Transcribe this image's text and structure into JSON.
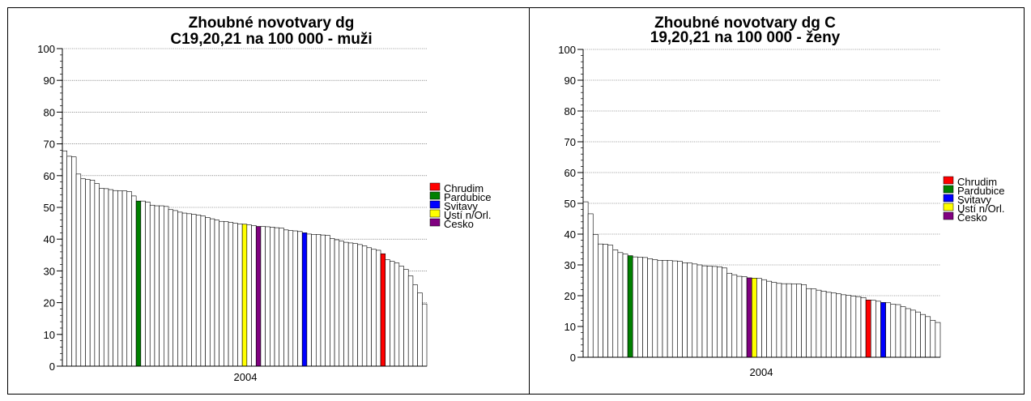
{
  "chart_data": [
    {
      "type": "bar",
      "title_lines": [
        "Zhoubné novotvary dg",
        "C19,20,21 na 100 000 - muži"
      ],
      "xlabel": "2004",
      "ylabel": "",
      "ylim": [
        0,
        100
      ],
      "yticks": [
        "0",
        "10",
        "20",
        "30",
        "40",
        "50",
        "60",
        "70",
        "80",
        "90",
        "100"
      ],
      "grid": "horizontal dotted at major ticks",
      "legend_placement": "right",
      "legend": [
        {
          "name": "Chrudim",
          "color": "#ff0000"
        },
        {
          "name": "Pardubice",
          "color": "#008000"
        },
        {
          "name": "Svitavy",
          "color": "#0000ff"
        },
        {
          "name": "Ústí n/Orl.",
          "color": "#ffff00"
        },
        {
          "name": "Česko",
          "color": "#800080"
        }
      ],
      "values": [
        67.8,
        66.1,
        65.9,
        60.5,
        59.0,
        58.8,
        58.6,
        57.5,
        56.0,
        55.9,
        55.6,
        55.3,
        55.2,
        55.2,
        55.0,
        53.6,
        52.0,
        52.0,
        51.7,
        50.7,
        50.5,
        50.5,
        50.3,
        49.3,
        49.0,
        48.5,
        48.2,
        48.0,
        47.8,
        47.6,
        47.3,
        46.8,
        46.4,
        46.0,
        45.6,
        45.5,
        45.3,
        45.0,
        44.8,
        44.7,
        44.5,
        44.3,
        44.0,
        44.0,
        43.9,
        43.8,
        43.6,
        43.5,
        42.9,
        42.7,
        42.6,
        42.4,
        42.0,
        41.6,
        41.5,
        41.5,
        41.3,
        41.2,
        40.2,
        39.8,
        39.4,
        39.0,
        38.8,
        38.6,
        38.3,
        37.9,
        37.3,
        36.8,
        36.5,
        35.4,
        33.5,
        33.0,
        32.5,
        31.5,
        30.5,
        28.4,
        25.6,
        23.1,
        19.6
      ],
      "highlights": [
        {
          "index": 16,
          "color": "#008000"
        },
        {
          "index": 39,
          "color": "#ffff00"
        },
        {
          "index": 42,
          "color": "#800080"
        },
        {
          "index": 52,
          "color": "#0000ff"
        },
        {
          "index": 69,
          "color": "#ff0000"
        }
      ]
    },
    {
      "type": "bar",
      "title_lines": [
        "Zhoubné novotvary dg C",
        "19,20,21 na 100 000 - ženy"
      ],
      "xlabel": "2004",
      "ylabel": "",
      "ylim": [
        0,
        100
      ],
      "yticks": [
        "0",
        "10",
        "20",
        "30",
        "40",
        "50",
        "60",
        "70",
        "80",
        "90",
        "100"
      ],
      "grid": "horizontal dotted at major ticks",
      "legend_placement": "right",
      "legend": [
        {
          "name": "Chrudim",
          "color": "#ff0000"
        },
        {
          "name": "Pardubice",
          "color": "#008000"
        },
        {
          "name": "Svitavy",
          "color": "#0000ff"
        },
        {
          "name": "Ústí n/Orl.",
          "color": "#ffff00"
        },
        {
          "name": "Česko",
          "color": "#800080"
        }
      ],
      "values": [
        50.5,
        46.6,
        39.9,
        36.8,
        36.7,
        36.4,
        34.9,
        34.0,
        33.5,
        33.0,
        32.6,
        32.5,
        32.4,
        32.0,
        31.7,
        31.5,
        31.5,
        31.4,
        31.3,
        31.2,
        30.7,
        30.6,
        30.3,
        30.0,
        29.7,
        29.6,
        29.5,
        29.4,
        29.0,
        27.3,
        26.8,
        26.3,
        26.2,
        25.8,
        25.7,
        25.6,
        25.2,
        24.7,
        24.3,
        24.0,
        23.9,
        23.9,
        23.8,
        23.8,
        23.6,
        22.3,
        22.2,
        21.8,
        21.5,
        21.1,
        20.9,
        20.6,
        20.3,
        20.1,
        19.9,
        19.7,
        19.4,
        18.6,
        18.5,
        18.2,
        17.8,
        17.7,
        17.2,
        17.1,
        16.4,
        15.8,
        15.3,
        14.7,
        13.9,
        13.2,
        12.0,
        11.3
      ],
      "highlights": [
        {
          "index": 9,
          "color": "#008000"
        },
        {
          "index": 33,
          "color": "#800080"
        },
        {
          "index": 34,
          "color": "#ffff00"
        },
        {
          "index": 57,
          "color": "#ff0000"
        },
        {
          "index": 60,
          "color": "#0000ff"
        }
      ]
    }
  ]
}
